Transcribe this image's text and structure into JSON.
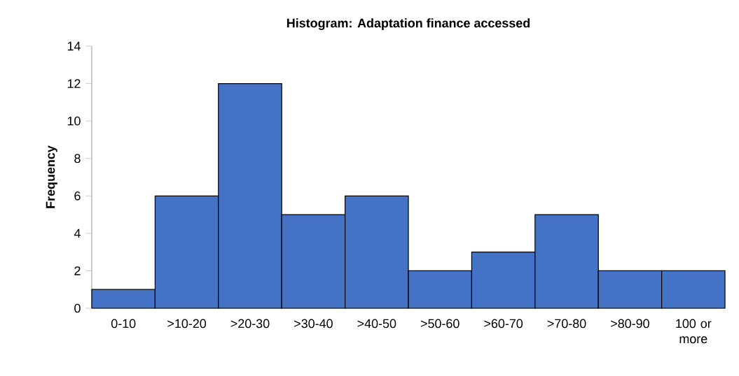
{
  "chart_data": {
    "type": "bar",
    "title": "Histogram: Adaptation finance accessed",
    "ylabel": "Frequency",
    "categories": [
      "0-10",
      ">10-20",
      ">20-30",
      ">30-40",
      ">40-50",
      ">50-60",
      ">60-70",
      ">70-80",
      ">80-90",
      "100 or more"
    ],
    "values": [
      1,
      6,
      12,
      5,
      6,
      2,
      3,
      5,
      2,
      2
    ],
    "color": "#4472c4",
    "ylim": [
      0,
      14
    ],
    "yticks": [
      0,
      2,
      4,
      6,
      8,
      10,
      12,
      14
    ]
  }
}
